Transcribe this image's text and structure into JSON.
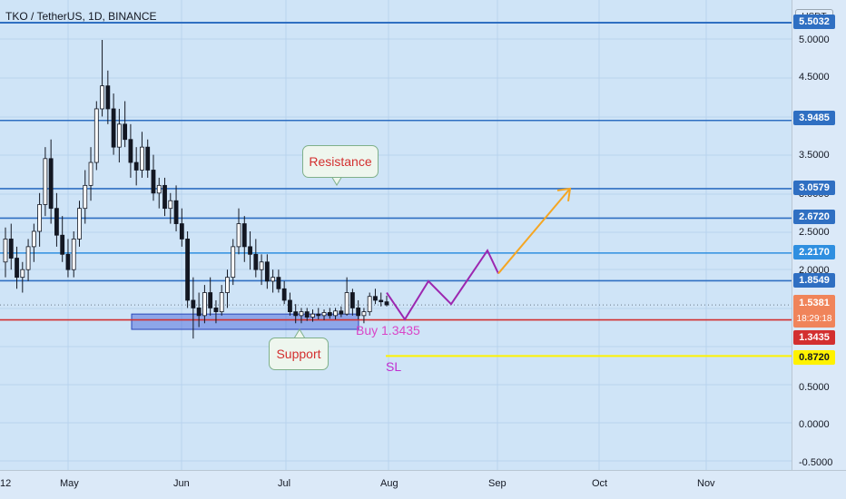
{
  "chart_data": {
    "type": "candlestick",
    "title": "TKO / TetherUS, 1D, BINANCE",
    "unit": "USDT",
    "ylim": [
      -0.5,
      5.0
    ],
    "y_ticks": [
      "5.0000",
      "4.5000",
      "3.5000",
      "3.0000",
      "2.5000",
      "2.0000",
      "0.5000",
      "0.0000",
      "-0.5000"
    ],
    "x_ticks": [
      "12",
      "May",
      "Jun",
      "Jul",
      "Aug",
      "Sep",
      "Oct",
      "Nov"
    ],
    "price_levels": [
      {
        "label": "5.5032",
        "color": "#2f6fc2"
      },
      {
        "label": "3.9485",
        "value": 3.9485,
        "color": "#2f6fc2"
      },
      {
        "label": "3.0579",
        "value": 3.0579,
        "color": "#2f6fc2"
      },
      {
        "label": "2.6720",
        "value": 2.672,
        "color": "#2f6fc2"
      },
      {
        "label": "2.2170",
        "value": 2.217,
        "color": "#2f8fe0"
      },
      {
        "label": "1.8549",
        "value": 1.8549,
        "color": "#2f6fc2"
      },
      {
        "label": "1.3435",
        "value": 1.3435,
        "color": "#d32f2f"
      },
      {
        "label": "0.8720",
        "value": 0.872,
        "color": "#fff200"
      }
    ],
    "last_price": {
      "value": 1.5381,
      "label": "1.5381",
      "countdown": "18:29:18",
      "color": "#f0845a"
    },
    "candles": [
      [
        2.1,
        2.55,
        1.9,
        2.4
      ],
      [
        2.4,
        2.6,
        2.0,
        2.15
      ],
      [
        2.15,
        2.3,
        1.75,
        1.9
      ],
      [
        1.9,
        2.1,
        1.7,
        2.0
      ],
      [
        2.0,
        2.4,
        1.85,
        2.3
      ],
      [
        2.3,
        2.6,
        2.1,
        2.5
      ],
      [
        2.5,
        3.0,
        2.3,
        2.85
      ],
      [
        2.85,
        3.6,
        2.7,
        3.45
      ],
      [
        3.45,
        3.7,
        2.6,
        2.8
      ],
      [
        2.8,
        3.0,
        2.3,
        2.45
      ],
      [
        2.45,
        2.7,
        2.1,
        2.2
      ],
      [
        2.2,
        2.4,
        1.9,
        2.0
      ],
      [
        2.0,
        2.5,
        1.9,
        2.4
      ],
      [
        2.4,
        2.9,
        2.3,
        2.8
      ],
      [
        2.8,
        3.3,
        2.6,
        3.1
      ],
      [
        3.1,
        3.6,
        2.9,
        3.4
      ],
      [
        3.4,
        4.2,
        3.3,
        4.1
      ],
      [
        4.1,
        5.0,
        4.0,
        4.4
      ],
      [
        4.4,
        4.6,
        3.9,
        4.1
      ],
      [
        4.1,
        4.3,
        3.5,
        3.6
      ],
      [
        3.6,
        4.1,
        3.4,
        3.9
      ],
      [
        3.9,
        4.2,
        3.6,
        3.7
      ],
      [
        3.7,
        3.9,
        3.2,
        3.4
      ],
      [
        3.4,
        3.6,
        3.1,
        3.3
      ],
      [
        3.3,
        3.8,
        3.2,
        3.6
      ],
      [
        3.6,
        3.7,
        3.2,
        3.3
      ],
      [
        3.3,
        3.5,
        2.9,
        3.0
      ],
      [
        3.0,
        3.2,
        2.8,
        3.1
      ],
      [
        3.1,
        3.2,
        2.7,
        2.8
      ],
      [
        2.8,
        3.0,
        2.6,
        2.9
      ],
      [
        2.9,
        3.1,
        2.5,
        2.6
      ],
      [
        2.6,
        2.8,
        2.3,
        2.4
      ],
      [
        2.4,
        2.5,
        1.5,
        1.6
      ],
      [
        1.6,
        1.9,
        1.1,
        1.5
      ],
      [
        1.5,
        1.7,
        1.25,
        1.4
      ],
      [
        1.4,
        1.8,
        1.3,
        1.7
      ],
      [
        1.7,
        1.9,
        1.4,
        1.5
      ],
      [
        1.5,
        1.6,
        1.3,
        1.45
      ],
      [
        1.45,
        1.8,
        1.4,
        1.7
      ],
      [
        1.7,
        2.0,
        1.5,
        1.9
      ],
      [
        1.9,
        2.4,
        1.8,
        2.3
      ],
      [
        2.3,
        2.8,
        2.2,
        2.6
      ],
      [
        2.6,
        2.7,
        2.1,
        2.3
      ],
      [
        2.3,
        2.5,
        2.0,
        2.2
      ],
      [
        2.2,
        2.4,
        1.9,
        2.0
      ],
      [
        2.0,
        2.2,
        1.8,
        2.1
      ],
      [
        2.1,
        2.2,
        1.75,
        1.85
      ],
      [
        1.85,
        2.0,
        1.7,
        1.9
      ],
      [
        1.9,
        2.0,
        1.7,
        1.75
      ],
      [
        1.75,
        1.85,
        1.55,
        1.6
      ],
      [
        1.6,
        1.7,
        1.4,
        1.45
      ],
      [
        1.45,
        1.55,
        1.3,
        1.4
      ],
      [
        1.4,
        1.5,
        1.3,
        1.45
      ],
      [
        1.45,
        1.5,
        1.33,
        1.38
      ],
      [
        1.38,
        1.48,
        1.32,
        1.42
      ],
      [
        1.42,
        1.5,
        1.35,
        1.4
      ],
      [
        1.4,
        1.48,
        1.34,
        1.44
      ],
      [
        1.44,
        1.5,
        1.36,
        1.4
      ],
      [
        1.4,
        1.5,
        1.35,
        1.46
      ],
      [
        1.46,
        1.52,
        1.38,
        1.42
      ],
      [
        1.42,
        1.9,
        1.4,
        1.7
      ],
      [
        1.7,
        1.75,
        1.4,
        1.5
      ],
      [
        1.5,
        1.6,
        1.35,
        1.4
      ],
      [
        1.4,
        1.5,
        1.3,
        1.45
      ],
      [
        1.45,
        1.7,
        1.4,
        1.65
      ],
      [
        1.65,
        1.75,
        1.55,
        1.6
      ],
      [
        1.6,
        1.7,
        1.52,
        1.58
      ],
      [
        1.58,
        1.66,
        1.52,
        1.54
      ]
    ],
    "annotations": {
      "resistance": "Resistance",
      "support": "Support",
      "buy": "Buy 1.3435",
      "sl": "SL"
    },
    "projection": {
      "purple": [
        [
          1.7
        ],
        [
          1.35
        ],
        [
          1.85
        ],
        [
          1.55
        ],
        [
          2.25
        ],
        [
          1.95
        ]
      ],
      "orange_target": 3.0579
    },
    "zone": {
      "low": 1.22,
      "high": 1.42,
      "color": "#3b5bd6"
    }
  }
}
